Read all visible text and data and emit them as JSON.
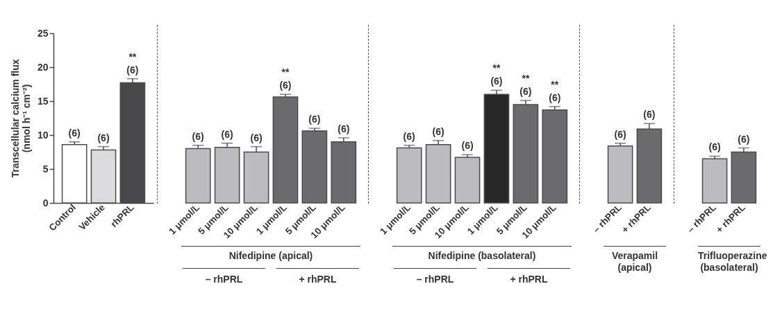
{
  "chart_data": [
    {
      "type": "bar",
      "ylabel": "Transcellular calcium flux (nmol h⁻¹ cm⁻²)",
      "categories": [
        "Control",
        "Vehicle",
        "rhPRL"
      ],
      "values": [
        8.6,
        7.8,
        17.7
      ],
      "colors": [
        "#ffffff",
        "#dcdcde",
        "#48484a"
      ],
      "errors": [
        [
          8.6,
          9.0
        ],
        [
          7.8,
          8.3
        ],
        [
          17.7,
          18.3
        ]
      ],
      "ylim": [
        0,
        25
      ],
      "yticks": [
        0,
        5,
        10,
        15,
        20,
        25
      ],
      "grid": false,
      "annotations": [
        "(6)",
        "(6)",
        "** (6)"
      ]
    },
    {
      "type": "bar",
      "xlabel": "Nifedipine (apical)",
      "categories": [
        "1 μmol/L",
        "5 μmol/L",
        "10 μmol/L",
        "1 μmol/L",
        "5 μmol/L",
        "10 μmol/L"
      ],
      "values": [
        8.0,
        8.2,
        7.5,
        15.6,
        10.6,
        9.0
      ],
      "colors": [
        "#bcbcc0",
        "#bcbcc0",
        "#bcbcc0",
        "#6b6b6d",
        "#6b6b6d",
        "#6b6b6d"
      ],
      "errors": [
        [
          8.0,
          8.5
        ],
        [
          8.2,
          8.8
        ],
        [
          7.5,
          8.3
        ],
        [
          15.6,
          16.0
        ],
        [
          10.6,
          11.0
        ],
        [
          9.0,
          9.6
        ]
      ],
      "ylim": [
        0,
        25
      ],
      "yticks": [
        0,
        5,
        10,
        15,
        20,
        25
      ],
      "tick_labels": "x",
      "grid": false,
      "annotations": [
        "(6)",
        "(6)",
        "(6)",
        "** (6)",
        "(6)",
        "(6)",
        "– rhPRL",
        "+ rhPRL"
      ]
    },
    {
      "type": "bar",
      "xlabel": "Nifedipine (basolateral)",
      "categories": [
        "1 μmol/L",
        "5 μmol/L",
        "10 μmol/L",
        "1 μmol/L",
        "5 μmol/L",
        "10 μmol/L"
      ],
      "values": [
        8.1,
        8.6,
        6.7,
        16.0,
        14.5,
        13.7
      ],
      "colors": [
        "#bcbcc0",
        "#bcbcc0",
        "#bcbcc0",
        "#282828",
        "#6b6b6d",
        "#6b6b6d"
      ],
      "errors": [
        [
          8.1,
          8.5
        ],
        [
          8.6,
          9.2
        ],
        [
          6.7,
          7.1
        ],
        [
          16.0,
          16.6
        ],
        [
          14.5,
          15.1
        ],
        [
          13.7,
          14.2
        ]
      ],
      "ylim": [
        0,
        25
      ],
      "yticks": [
        0,
        5,
        10,
        15,
        20,
        25
      ],
      "tick_labels": "x",
      "grid": false,
      "annotations": [
        "(6)",
        "(6)",
        "(6)",
        "** (6)",
        "** (6)",
        "** (6)",
        "– rhPRL",
        "+ rhPRL"
      ]
    },
    {
      "type": "bar",
      "xlabel": "Verapamil (apical)",
      "categories": [
        "– rhPRL",
        "+ rhPRL"
      ],
      "values": [
        8.4,
        10.9
      ],
      "colors": [
        "#bcbcc0",
        "#6b6b6d"
      ],
      "errors": [
        [
          8.4,
          8.8
        ],
        [
          10.9,
          11.7
        ]
      ],
      "ylim": [
        0,
        25
      ],
      "yticks": [
        0,
        5,
        10,
        15,
        20,
        25
      ],
      "tick_labels": "x",
      "grid": false,
      "annotations": [
        "(6)",
        "(6)"
      ]
    },
    {
      "type": "bar",
      "xlabel": "Trifluoperazine (basolateral)",
      "categories": [
        "– rhPRL",
        "+ rhPRL"
      ],
      "values": [
        6.5,
        7.5
      ],
      "colors": [
        "#bcbcc0",
        "#6b6b6d"
      ],
      "errors": [
        [
          6.5,
          6.9
        ],
        [
          7.5,
          8.1
        ]
      ],
      "ylim": [
        0,
        25
      ],
      "yticks": [
        0,
        5,
        10,
        15,
        20,
        25
      ],
      "tick_labels": "x",
      "grid": false,
      "annotations": [
        "(6)",
        "(6)"
      ]
    }
  ]
}
